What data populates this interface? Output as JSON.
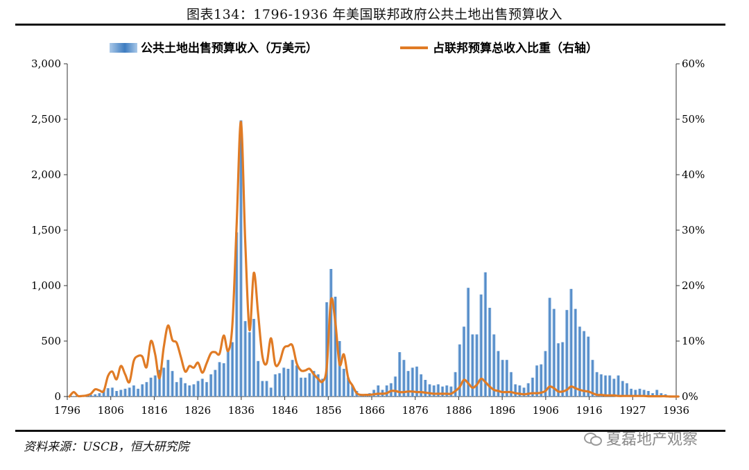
{
  "page": {
    "title": "图表134：1796-1936 年美国联邦政府公共土地出售预算收入",
    "source": "资料来源：USCB，恒大研究院",
    "watermark": "夏磊地产观察"
  },
  "chart_data": {
    "type": "bar",
    "legend_position": "top",
    "colors": {
      "bar": "#3e7cc0",
      "bar_light": "#a9c8e8",
      "line": "#e07b25"
    },
    "x_tick_labels": [
      "1796",
      "1806",
      "1816",
      "1826",
      "1836",
      "1846",
      "1856",
      "1866",
      "1876",
      "1886",
      "1896",
      "1906",
      "1916",
      "1927",
      "1936"
    ],
    "left_axis": {
      "ylim": [
        0,
        3000
      ],
      "ticks": [
        "0",
        "500",
        "1,000",
        "1,500",
        "2,000",
        "2,500",
        "3,000"
      ]
    },
    "right_axis": {
      "ylim": [
        0,
        60
      ],
      "ticks": [
        "0%",
        "10%",
        "20%",
        "30%",
        "40%",
        "50%",
        "60%"
      ]
    },
    "x_start": 1796,
    "series": [
      {
        "name": "公共土地出售预算收入（万美元）",
        "type": "bar",
        "axis": "left",
        "values": [
          0,
          2,
          5,
          10,
          15,
          15,
          20,
          30,
          60,
          75,
          80,
          50,
          60,
          70,
          80,
          100,
          70,
          110,
          130,
          170,
          190,
          240,
          260,
          330,
          230,
          130,
          170,
          120,
          100,
          110,
          140,
          160,
          130,
          200,
          240,
          310,
          300,
          430,
          490,
          1480,
          2490,
          680,
          580,
          700,
          320,
          140,
          140,
          80,
          200,
          210,
          260,
          250,
          330,
          280,
          170,
          170,
          210,
          230,
          200,
          160,
          850,
          1150,
          900,
          500,
          250,
          170,
          100,
          50,
          20,
          10,
          30,
          60,
          100,
          60,
          100,
          120,
          180,
          400,
          330,
          230,
          260,
          270,
          200,
          150,
          110,
          100,
          110,
          90,
          100,
          90,
          220,
          470,
          630,
          980,
          560,
          560,
          920,
          1120,
          800,
          560,
          410,
          330,
          330,
          220,
          110,
          100,
          80,
          120,
          170,
          280,
          290,
          410,
          890,
          790,
          480,
          490,
          780,
          970,
          790,
          630,
          590,
          540,
          330,
          220,
          200,
          190,
          190,
          160,
          190,
          140,
          120,
          70,
          60,
          70,
          60,
          50,
          30,
          60,
          30,
          20,
          10,
          5
        ]
      },
      {
        "name": "占联邦预算总收入比重（右轴）",
        "type": "line",
        "axis": "right",
        "values": [
          0,
          0.8,
          0.1,
          0.1,
          0.2,
          0.5,
          1.3,
          1.1,
          1.0,
          3.7,
          4.5,
          3.1,
          5.5,
          4.0,
          2.6,
          6.4,
          7.3,
          7.2,
          5.3,
          10.0,
          7.6,
          3.3,
          8.9,
          12.8,
          10.2,
          9.7,
          7.1,
          4.5,
          5.5,
          5.2,
          6.1,
          4.3,
          6.0,
          7.8,
          8.0,
          7.7,
          11.0,
          8.2,
          12.9,
          31.0,
          49.5,
          28.0,
          12.0,
          22.3,
          15.0,
          7.3,
          6.0,
          10.5,
          5.8,
          6.2,
          8.7,
          9.1,
          9.2,
          6.0,
          4.7,
          4.7,
          5.0,
          4.0,
          3.2,
          2.7,
          5.2,
          17.4,
          13.5,
          5.8,
          7.6,
          3.4,
          2.0,
          0.6,
          0.3,
          0.3,
          0.3,
          0.4,
          0.5,
          0.5,
          0.6,
          1.0,
          1.0,
          0.8,
          0.8,
          0.9,
          0.9,
          0.8,
          0.8,
          0.7,
          0.6,
          0.5,
          0.5,
          0.5,
          0.5,
          0.5,
          1.0,
          1.7,
          3.0,
          2.4,
          1.6,
          2.1,
          3.2,
          2.6,
          1.8,
          1.2,
          1.0,
          0.8,
          0.8,
          0.8,
          0.6,
          0.5,
          0.4,
          0.5,
          0.6,
          0.6,
          0.7,
          1.0,
          1.8,
          1.5,
          0.9,
          0.9,
          1.2,
          1.8,
          1.5,
          1.2,
          1.0,
          0.9,
          0.6,
          0.3,
          0.3,
          0.2,
          0.2,
          0.2,
          0.1,
          0.1,
          0.1,
          0.1,
          0.1,
          0.1,
          0.1,
          0.05,
          0.05,
          0.05,
          0.05,
          0.05,
          0.0,
          0.0,
          0.0
        ]
      }
    ]
  }
}
